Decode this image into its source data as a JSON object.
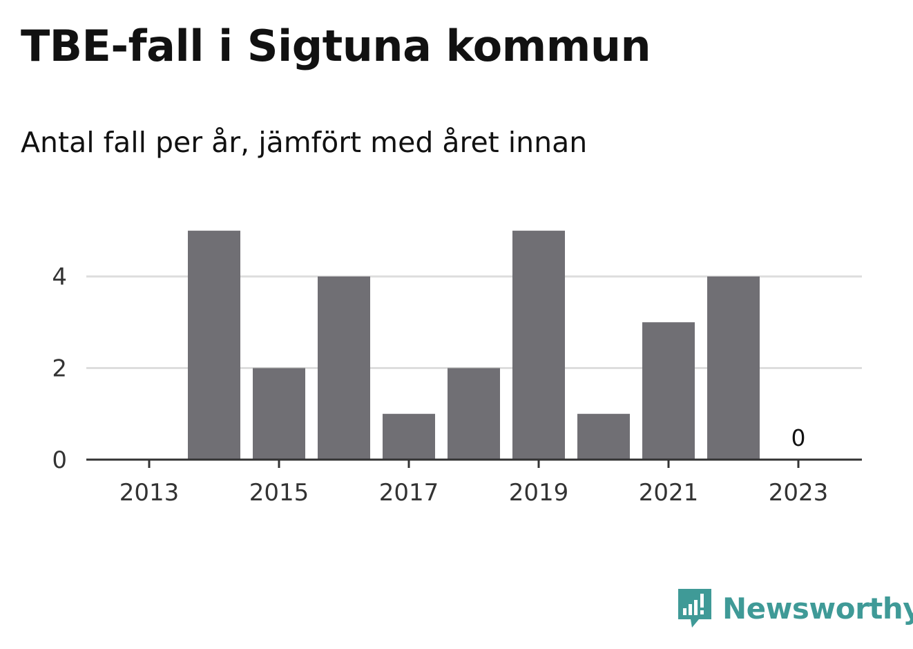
{
  "chart_data": {
    "type": "bar",
    "title": "TBE-fall i Sigtuna kommun",
    "subtitle": "Antal fall per år, jämfört med året innan",
    "categories": [
      "2013",
      "2014",
      "2015",
      "2016",
      "2017",
      "2018",
      "2019",
      "2020",
      "2021",
      "2022",
      "2023"
    ],
    "values": [
      0,
      5,
      2,
      4,
      1,
      2,
      5,
      1,
      3,
      4,
      0
    ],
    "x_tick_labels": [
      "2013",
      "2015",
      "2017",
      "2019",
      "2021",
      "2023"
    ],
    "y_ticks": [
      0,
      2,
      4
    ],
    "y_tick_labels": [
      "0",
      "2",
      "4"
    ],
    "ylim": [
      0,
      5
    ],
    "grid": true,
    "bar_color": "#706f74",
    "data_labels": [
      {
        "category": "2023",
        "text": "0"
      }
    ]
  },
  "brand": {
    "name": "Newsworthy",
    "icon": "newsworthy-logo-icon",
    "color": "#3f9a97"
  }
}
